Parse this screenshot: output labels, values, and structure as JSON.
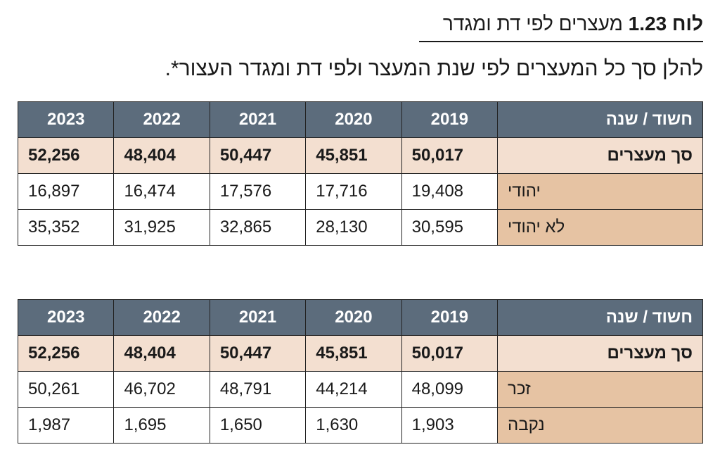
{
  "title": {
    "label": "לוח",
    "number": "1.23",
    "text": "מעצרים לפי דת ומגדר"
  },
  "subtitle": "להלן סך כל המעצרים לפי שנת המעצר ולפי דת ומגדר העצור*.",
  "tables": [
    {
      "header_label": "חשוד / שנה",
      "years": [
        "2019",
        "2020",
        "2021",
        "2022",
        "2023"
      ],
      "total_label": "סך מעצרים",
      "totals": [
        "50,017",
        "45,851",
        "50,447",
        "48,404",
        "52,256"
      ],
      "rows": [
        {
          "label": "יהודי",
          "values": [
            "19,408",
            "17,716",
            "17,576",
            "16,474",
            "16,897"
          ]
        },
        {
          "label": "לא יהודי",
          "values": [
            "30,595",
            "28,130",
            "32,865",
            "31,925",
            "35,352"
          ]
        }
      ]
    },
    {
      "header_label": "חשוד / שנה",
      "years": [
        "2019",
        "2020",
        "2021",
        "2022",
        "2023"
      ],
      "total_label": "סך מעצרים",
      "totals": [
        "50,017",
        "45,851",
        "50,447",
        "48,404",
        "52,256"
      ],
      "rows": [
        {
          "label": "זכר",
          "values": [
            "48,099",
            "44,214",
            "48,791",
            "46,702",
            "50,261"
          ]
        },
        {
          "label": "נקבה",
          "values": [
            "1,903",
            "1,630",
            "1,650",
            "1,695",
            "1,987"
          ]
        }
      ]
    }
  ],
  "colors": {
    "header_bg": "#5c6c7c",
    "total_bg": "#f3dfd0",
    "row_label_bg": "#e6c3a3"
  }
}
